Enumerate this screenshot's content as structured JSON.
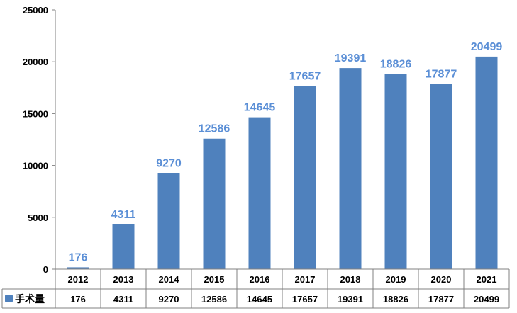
{
  "chart_data": {
    "type": "bar",
    "categories": [
      "2012",
      "2013",
      "2014",
      "2015",
      "2016",
      "2017",
      "2018",
      "2019",
      "2020",
      "2021"
    ],
    "series": [
      {
        "name": "手术量",
        "values": [
          176,
          4311,
          9270,
          12586,
          14645,
          17657,
          19391,
          18826,
          17877,
          20499
        ],
        "color": "#4f81bd",
        "label_color": "#5b8fd6"
      }
    ],
    "ylim": [
      0,
      25000
    ],
    "yticks": [
      0,
      5000,
      10000,
      15000,
      20000,
      25000
    ],
    "grid": false,
    "legend": "data-table",
    "data_table": true,
    "axis_color": "#808080"
  }
}
